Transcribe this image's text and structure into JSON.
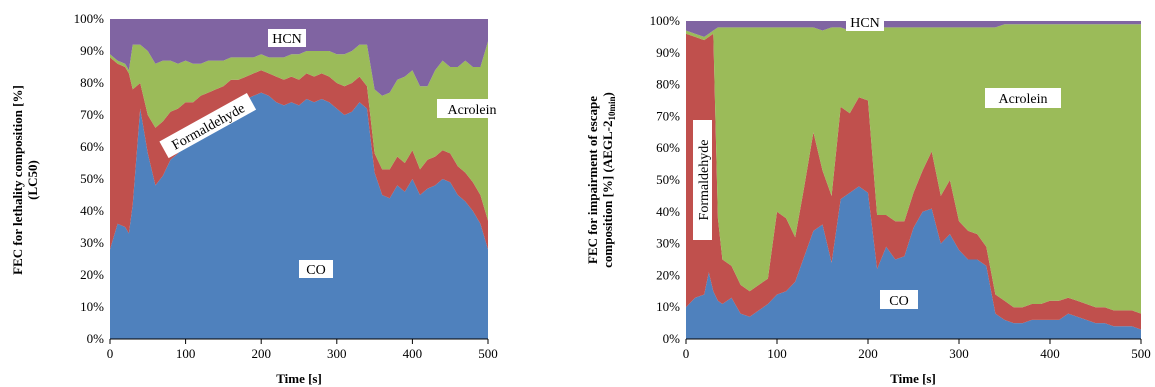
{
  "chart_data": [
    {
      "type": "area",
      "stacked": true,
      "normalized": true,
      "xlabel": "Time [s]",
      "ylabel": "FEC for lethality composition [%] (LC50)",
      "xlim": [
        0,
        500
      ],
      "ylim": [
        0,
        100
      ],
      "x_ticks": [
        "0",
        "100",
        "200",
        "300",
        "400",
        "500"
      ],
      "y_ticks": [
        "0%",
        "10%",
        "20%",
        "30%",
        "40%",
        "50%",
        "60%",
        "70%",
        "80%",
        "90%",
        "100%"
      ],
      "grid": false,
      "legend": "none (series labeled directly on areas)",
      "x": [
        0,
        10,
        20,
        25,
        30,
        40,
        50,
        60,
        70,
        80,
        90,
        100,
        110,
        120,
        130,
        140,
        150,
        160,
        170,
        180,
        190,
        200,
        210,
        220,
        230,
        240,
        250,
        260,
        270,
        280,
        290,
        300,
        310,
        320,
        330,
        340,
        350,
        360,
        370,
        380,
        390,
        400,
        410,
        420,
        430,
        440,
        450,
        460,
        470,
        480,
        490,
        500
      ],
      "series": [
        {
          "name": "CO",
          "color": "#4F81BD",
          "values": [
            28,
            36,
            35,
            33,
            42,
            72,
            58,
            48,
            51,
            56,
            58,
            62,
            63,
            66,
            68,
            70,
            71,
            73,
            74,
            75,
            76,
            77,
            76,
            74,
            73,
            74,
            73,
            75,
            74,
            75,
            74,
            72,
            70,
            71,
            74,
            72,
            52,
            45,
            44,
            48,
            46,
            50,
            45,
            47,
            48,
            50,
            49,
            45,
            43,
            40,
            36,
            28
          ]
        },
        {
          "name": "Formaldehyde",
          "color": "#C0504D",
          "values": [
            60,
            50,
            50,
            50,
            36,
            8,
            12,
            18,
            17,
            15,
            14,
            12,
            11,
            10,
            9,
            8,
            8,
            8,
            7,
            7,
            7,
            7,
            7,
            8,
            8,
            8,
            8,
            8,
            8,
            8,
            8,
            8,
            9,
            9,
            8,
            7,
            6,
            8,
            9,
            9,
            9,
            9,
            8,
            9,
            9,
            9,
            9,
            9,
            9,
            9,
            9,
            9
          ]
        },
        {
          "name": "Acrolein",
          "color": "#9BBB59",
          "values": [
            1,
            1,
            1,
            1,
            14,
            12,
            20,
            20,
            19,
            16,
            14,
            13,
            12,
            10,
            10,
            9,
            8,
            7,
            7,
            6,
            5,
            5,
            5,
            6,
            7,
            7,
            8,
            7,
            8,
            7,
            8,
            9,
            10,
            10,
            10,
            13,
            20,
            23,
            24,
            24,
            27,
            25,
            26,
            23,
            27,
            28,
            27,
            31,
            35,
            36,
            40,
            56
          ]
        },
        {
          "name": "HCN",
          "color": "#8064A2",
          "values": [
            11,
            13,
            14,
            16,
            8,
            8,
            10,
            14,
            13,
            13,
            14,
            13,
            14,
            14,
            13,
            13,
            13,
            12,
            12,
            12,
            12,
            11,
            12,
            12,
            12,
            11,
            11,
            10,
            10,
            10,
            10,
            11,
            11,
            10,
            8,
            8,
            22,
            24,
            23,
            19,
            18,
            16,
            21,
            21,
            16,
            13,
            15,
            15,
            13,
            15,
            15,
            7
          ]
        }
      ],
      "annotations": [
        "HCN",
        "Formaldehyde",
        "Acrolein",
        "CO"
      ]
    },
    {
      "type": "area",
      "stacked": true,
      "normalized": true,
      "xlabel": "Time [s]",
      "ylabel": "FEC for impairment of escape composition [%] (AEGL-2",
      "ylabel_subscript": "10min",
      "ylabel_suffix": ")",
      "xlim": [
        0,
        500
      ],
      "ylim": [
        0,
        100
      ],
      "x_ticks": [
        "0",
        "100",
        "200",
        "300",
        "400",
        "500"
      ],
      "y_ticks": [
        "0%",
        "10%",
        "20%",
        "30%",
        "40%",
        "50%",
        "60%",
        "70%",
        "80%",
        "90%",
        "100%"
      ],
      "grid": false,
      "legend": "none (series labeled directly on areas)",
      "x": [
        0,
        10,
        20,
        25,
        30,
        35,
        40,
        50,
        60,
        70,
        80,
        90,
        100,
        110,
        120,
        130,
        140,
        150,
        160,
        170,
        180,
        190,
        200,
        210,
        220,
        230,
        240,
        250,
        260,
        270,
        280,
        290,
        300,
        310,
        320,
        330,
        340,
        350,
        360,
        370,
        380,
        390,
        400,
        410,
        420,
        430,
        440,
        450,
        460,
        470,
        480,
        490,
        500
      ],
      "series": [
        {
          "name": "CO",
          "color": "#4F81BD",
          "values": [
            10,
            13,
            14,
            21,
            15,
            12,
            11,
            13,
            8,
            7,
            9,
            11,
            14,
            15,
            18,
            26,
            34,
            36,
            24,
            44,
            46,
            48,
            46,
            22,
            29,
            25,
            26,
            35,
            40,
            41,
            30,
            33,
            28,
            25,
            25,
            23,
            8,
            6,
            5,
            5,
            6,
            6,
            6,
            6,
            8,
            7,
            6,
            5,
            5,
            4,
            4,
            4,
            3
          ]
        },
        {
          "name": "Formaldehyde",
          "color": "#C0504D",
          "values": [
            86,
            82,
            80,
            74,
            81,
            26,
            14,
            10,
            9,
            8,
            8,
            8,
            26,
            23,
            14,
            22,
            31,
            17,
            21,
            29,
            25,
            28,
            29,
            17,
            10,
            12,
            11,
            11,
            13,
            18,
            15,
            17,
            9,
            9,
            8,
            6,
            6,
            6,
            5,
            5,
            5,
            5,
            6,
            6,
            5,
            5,
            5,
            5,
            5,
            5,
            5,
            5,
            5
          ]
        },
        {
          "name": "Acrolein",
          "color": "#9BBB59",
          "values": [
            1,
            1,
            1,
            1,
            1,
            60,
            73,
            75,
            81,
            83,
            81,
            79,
            58,
            60,
            66,
            50,
            33,
            44,
            53,
            25,
            26,
            22,
            23,
            59,
            59,
            61,
            61,
            52,
            45,
            39,
            53,
            48,
            61,
            64,
            65,
            69,
            84,
            87,
            89,
            89,
            88,
            88,
            87,
            87,
            86,
            87,
            88,
            89,
            89,
            90,
            90,
            90,
            91
          ]
        },
        {
          "name": "HCN",
          "color": "#8064A2",
          "values": [
            3,
            4,
            5,
            4,
            3,
            2,
            2,
            2,
            2,
            2,
            2,
            2,
            2,
            2,
            2,
            2,
            2,
            3,
            2,
            2,
            3,
            2,
            2,
            2,
            2,
            2,
            2,
            2,
            2,
            2,
            2,
            2,
            2,
            2,
            2,
            2,
            2,
            1,
            1,
            1,
            1,
            1,
            1,
            1,
            1,
            1,
            1,
            1,
            1,
            1,
            1,
            1,
            1
          ]
        }
      ],
      "annotations": [
        "HCN",
        "Formaldehyde",
        "Acrolein",
        "CO"
      ]
    }
  ]
}
